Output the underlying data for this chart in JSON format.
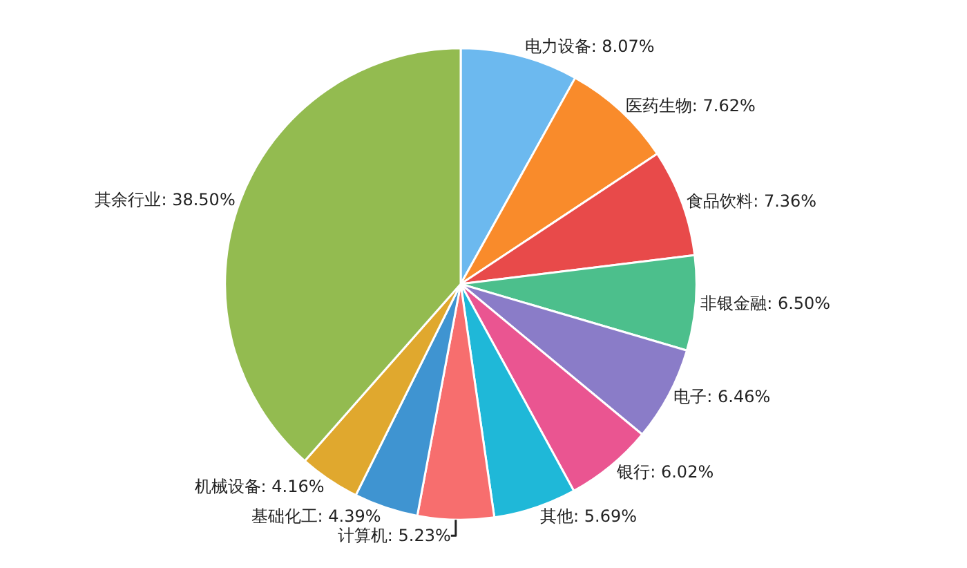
{
  "chart_data": {
    "type": "pie",
    "categories": [
      "电力设备",
      "医药生物",
      "食品饮料",
      "非银金融",
      "电子",
      "银行",
      "其他",
      "计算机",
      "基础化工",
      "机械设备",
      "其余行业"
    ],
    "values": [
      8.07,
      7.62,
      7.36,
      6.5,
      6.46,
      6.02,
      5.69,
      5.23,
      4.39,
      4.16,
      38.5
    ],
    "value_labels": [
      "8.07%",
      "7.62%",
      "7.36%",
      "6.50%",
      "6.46%",
      "6.02%",
      "5.69%",
      "5.23%",
      "4.39%",
      "4.16%",
      "38.50%"
    ],
    "colors": [
      "#6cb9ef",
      "#f98b2b",
      "#e84a4a",
      "#4cbf8c",
      "#8a7cc8",
      "#ea5591",
      "#1fb8d8",
      "#f76e6e",
      "#3f94d1",
      "#e0a82e",
      "#93bb50"
    ],
    "legend": false
  }
}
